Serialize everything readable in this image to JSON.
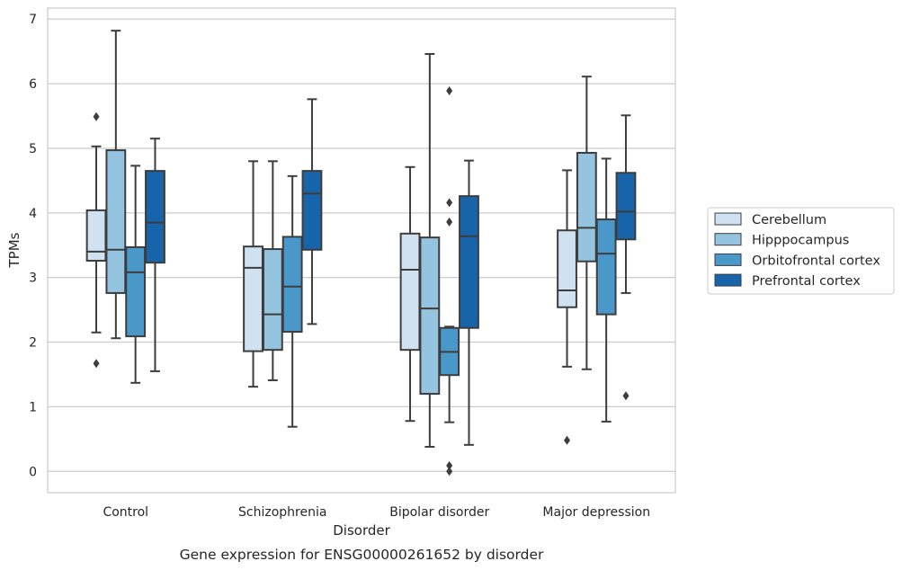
{
  "chart_data": {
    "type": "box",
    "title": "",
    "caption": "Gene expression for ENSG00000261652 by disorder",
    "xlabel": "Disorder",
    "ylabel": "TPMs",
    "ylim": [
      -0.33,
      7.17
    ],
    "yticks": [
      "0",
      "1",
      "2",
      "3",
      "4",
      "5",
      "6",
      "7"
    ],
    "grid": "horizontal",
    "legend_position": "right",
    "categories": [
      "Control",
      "Schizophrenia",
      "Bipolar disorder",
      "Major depression"
    ],
    "series": [
      {
        "name": "Cerebellum",
        "color": "#d0e1f2",
        "boxes": [
          {
            "whisker_low": 2.15,
            "q1": 3.26,
            "median": 3.4,
            "q3": 4.04,
            "whisker_high": 5.03,
            "outliers": [
              5.49,
              1.67
            ]
          },
          {
            "whisker_low": 1.31,
            "q1": 1.86,
            "median": 3.15,
            "q3": 3.48,
            "whisker_high": 4.8,
            "outliers": []
          },
          {
            "whisker_low": 0.78,
            "q1": 1.88,
            "median": 3.12,
            "q3": 3.68,
            "whisker_high": 4.71,
            "outliers": []
          },
          {
            "whisker_low": 1.62,
            "q1": 2.54,
            "median": 2.8,
            "q3": 3.73,
            "whisker_high": 4.66,
            "outliers": [
              0.48
            ]
          }
        ]
      },
      {
        "name": "Hipppocampus",
        "color": "#94c4df",
        "boxes": [
          {
            "whisker_low": 2.06,
            "q1": 2.76,
            "median": 3.43,
            "q3": 4.97,
            "whisker_high": 6.82,
            "outliers": []
          },
          {
            "whisker_low": 1.41,
            "q1": 1.88,
            "median": 2.43,
            "q3": 3.44,
            "whisker_high": 4.8,
            "outliers": []
          },
          {
            "whisker_low": 0.38,
            "q1": 1.2,
            "median": 2.52,
            "q3": 3.62,
            "whisker_high": 6.46,
            "outliers": []
          },
          {
            "whisker_low": 1.58,
            "q1": 3.25,
            "median": 3.77,
            "q3": 4.93,
            "whisker_high": 6.11,
            "outliers": []
          }
        ]
      },
      {
        "name": "Orbitofrontal cortex",
        "color": "#4a98c9",
        "boxes": [
          {
            "whisker_low": 1.37,
            "q1": 2.09,
            "median": 3.08,
            "q3": 3.47,
            "whisker_high": 4.73,
            "outliers": []
          },
          {
            "whisker_low": 0.69,
            "q1": 2.16,
            "median": 2.86,
            "q3": 3.63,
            "whisker_high": 4.57,
            "outliers": []
          },
          {
            "whisker_low": 0.76,
            "q1": 1.49,
            "median": 1.85,
            "q3": 2.22,
            "whisker_high": 2.24,
            "outliers": [
              5.89,
              4.16,
              3.86,
              0.09,
              0.0
            ]
          },
          {
            "whisker_low": 0.77,
            "q1": 2.43,
            "median": 3.37,
            "q3": 3.9,
            "whisker_high": 4.84,
            "outliers": []
          }
        ]
      },
      {
        "name": "Prefrontal cortex",
        "color": "#1764ab",
        "boxes": [
          {
            "whisker_low": 1.55,
            "q1": 3.23,
            "median": 3.85,
            "q3": 4.65,
            "whisker_high": 5.15,
            "outliers": []
          },
          {
            "whisker_low": 2.28,
            "q1": 3.43,
            "median": 4.3,
            "q3": 4.65,
            "whisker_high": 5.76,
            "outliers": []
          },
          {
            "whisker_low": 0.41,
            "q1": 2.22,
            "median": 3.64,
            "q3": 4.26,
            "whisker_high": 4.81,
            "outliers": []
          },
          {
            "whisker_low": 2.76,
            "q1": 3.59,
            "median": 4.02,
            "q3": 4.62,
            "whisker_high": 5.51,
            "outliers": [
              1.17
            ]
          }
        ]
      }
    ]
  }
}
